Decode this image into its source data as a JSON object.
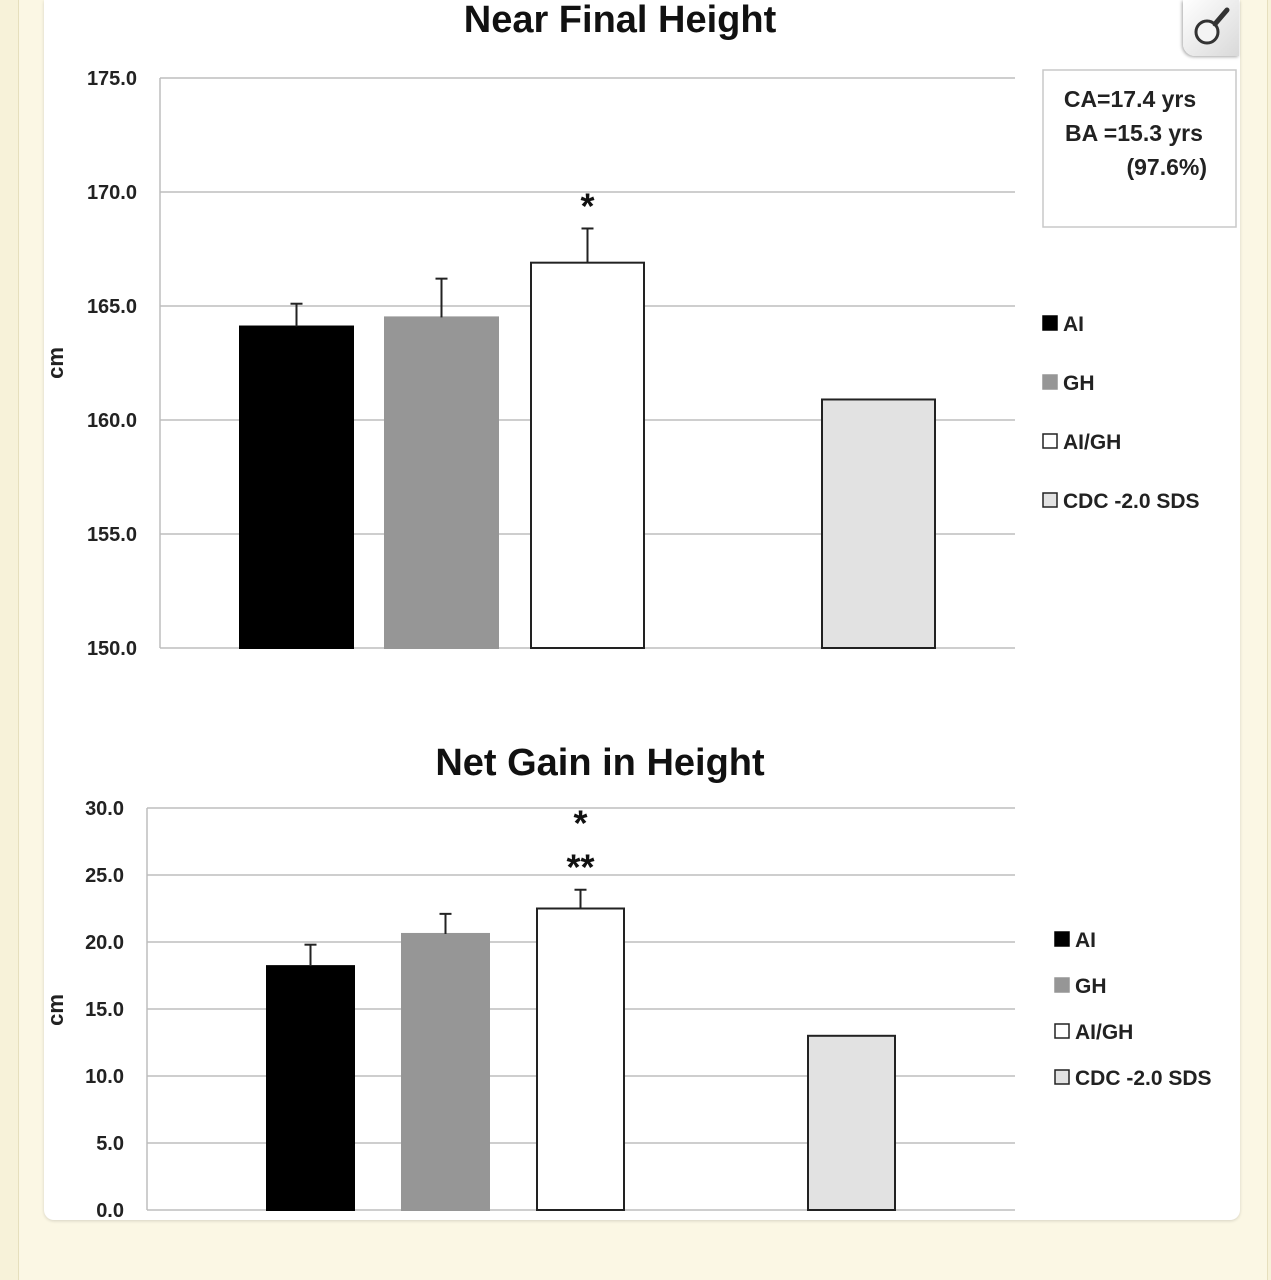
{
  "colors": {
    "AI": "#000000",
    "GH": "#969696",
    "AI/GH": "#ffffff",
    "CDC -2.0 SDS": "#e2e2e2",
    "gridline": "#bdbdbd",
    "background": "#fbf7e4"
  },
  "toolbar": {
    "zoom_icon": "magnifier-icon"
  },
  "chart_data": [
    {
      "type": "bar",
      "title": "Near Final Height",
      "ylabel": "cm",
      "xlabel": "",
      "ylim": [
        150,
        175
      ],
      "yticks": [
        "150.0",
        "155.0",
        "160.0",
        "165.0",
        "170.0",
        "175.0"
      ],
      "grid": true,
      "legend_position": "right",
      "legend": [
        "AI",
        "GH",
        "AI/GH",
        "CDC -2.0 SDS"
      ],
      "categories": [
        "AI",
        "GH",
        "AI/GH",
        "CDC -2.0 SDS"
      ],
      "values": [
        164.1,
        164.5,
        166.9,
        160.9
      ],
      "errors": [
        1.0,
        1.7,
        1.5,
        null
      ],
      "significance": [
        "",
        "",
        "*",
        ""
      ],
      "note": [
        "CA=17.4 yrs",
        "BA =15.3 yrs",
        "(97.6%)"
      ]
    },
    {
      "type": "bar",
      "title": "Net Gain in Height",
      "ylabel": "cm",
      "xlabel": "",
      "ylim": [
        0,
        30
      ],
      "yticks": [
        "0.0",
        "5.0",
        "10.0",
        "15.0",
        "20.0",
        "25.0",
        "30.0"
      ],
      "grid": true,
      "legend_position": "right",
      "legend": [
        "AI",
        "GH",
        "AI/GH",
        "CDC -2.0 SDS"
      ],
      "categories": [
        "AI",
        "GH",
        "AI/GH",
        "CDC -2.0 SDS"
      ],
      "values": [
        18.2,
        20.6,
        22.5,
        13.0
      ],
      "errors": [
        1.6,
        1.5,
        1.4,
        null
      ],
      "significance": [
        "",
        "",
        "*|**",
        ""
      ]
    }
  ]
}
